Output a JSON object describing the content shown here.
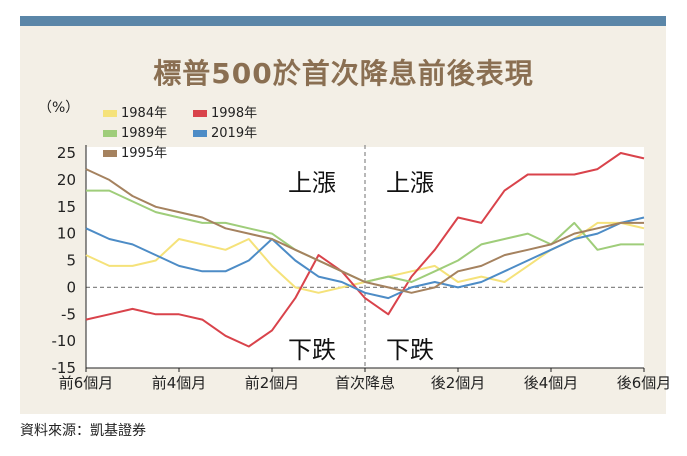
{
  "title": "標普500於首次降息前後表現",
  "source": "資料來源：凱基證券",
  "chart_data": {
    "type": "line",
    "unit_label": "（%）",
    "ylim": [
      -15,
      25
    ],
    "yticks": [
      "25",
      "20",
      "15",
      "10",
      "5",
      "0",
      "-5",
      "-10",
      "-15"
    ],
    "yticks_values": [
      25,
      20,
      15,
      10,
      5,
      0,
      -5,
      -10,
      -15
    ],
    "xlim": [
      -6,
      6
    ],
    "xticks": [
      "前6個月",
      "前4個月",
      "前2個月",
      "首次降息",
      "後2個月",
      "後4個月",
      "後6個月"
    ],
    "xticks_values": [
      -6,
      -4,
      -2,
      0,
      2,
      4,
      6
    ],
    "annotations": {
      "up_left": "上漲",
      "up_right": "上漲",
      "down_left": "下跌",
      "down_right": "下跌"
    },
    "legend_placement": "top-left",
    "series": [
      {
        "name": "1984年",
        "color": "#f5e27a",
        "x": [
          -6,
          -5.5,
          -5,
          -4.5,
          -4,
          -3.5,
          -3,
          -2.5,
          -2,
          -1.5,
          -1,
          -0.5,
          0,
          0.5,
          1,
          1.5,
          2,
          2.5,
          3,
          3.5,
          4,
          4.5,
          5,
          5.5,
          6
        ],
        "y": [
          6,
          4,
          4,
          5,
          9,
          8,
          7,
          9,
          4,
          0,
          -1,
          0,
          1,
          2,
          3,
          4,
          1,
          2,
          1,
          4,
          7,
          9,
          12,
          12,
          11
        ]
      },
      {
        "name": "1998年",
        "color": "#d9434b",
        "x": [
          -6,
          -5.5,
          -5,
          -4.5,
          -4,
          -3.5,
          -3,
          -2.5,
          -2,
          -1.5,
          -1,
          -0.5,
          0,
          0.5,
          1,
          1.5,
          2,
          2.5,
          3,
          3.5,
          4,
          4.5,
          5,
          5.5,
          6
        ],
        "y": [
          -6,
          -5,
          -4,
          -5,
          -5,
          -6,
          -9,
          -11,
          -8,
          -2,
          6,
          3,
          -2,
          -5,
          2,
          7,
          13,
          12,
          18,
          21,
          21,
          21,
          22,
          25,
          24
        ]
      },
      {
        "name": "1989年",
        "color": "#9fcd7a",
        "x": [
          -6,
          -5.5,
          -5,
          -4.5,
          -4,
          -3.5,
          -3,
          -2.5,
          -2,
          -1.5,
          -1,
          -0.5,
          0,
          0.5,
          1,
          1.5,
          2,
          2.5,
          3,
          3.5,
          4,
          4.5,
          5,
          5.5,
          6
        ],
        "y": [
          18,
          18,
          16,
          14,
          13,
          12,
          12,
          11,
          10,
          7,
          5,
          3,
          1,
          2,
          1,
          3,
          5,
          8,
          9,
          10,
          8,
          12,
          7,
          8,
          8
        ]
      },
      {
        "name": "2019年",
        "color": "#4d8cc6",
        "x": [
          -6,
          -5.5,
          -5,
          -4.5,
          -4,
          -3.5,
          -3,
          -2.5,
          -2,
          -1.5,
          -1,
          -0.5,
          0,
          0.5,
          1,
          1.5,
          2,
          2.5,
          3,
          3.5,
          4,
          4.5,
          5,
          5.5,
          6
        ],
        "y": [
          11,
          9,
          8,
          6,
          4,
          3,
          3,
          5,
          9,
          5,
          2,
          1,
          -1,
          -2,
          0,
          1,
          0,
          1,
          3,
          5,
          7,
          9,
          10,
          12,
          13
        ]
      },
      {
        "name": "1995年",
        "color": "#a5825f",
        "x": [
          -6,
          -5.5,
          -5,
          -4.5,
          -4,
          -3.5,
          -3,
          -2.5,
          -2,
          -1.5,
          -1,
          -0.5,
          0,
          0.5,
          1,
          1.5,
          2,
          2.5,
          3,
          3.5,
          4,
          4.5,
          5,
          5.5,
          6
        ],
        "y": [
          22,
          20,
          17,
          15,
          14,
          13,
          11,
          10,
          9,
          7,
          5,
          3,
          1,
          0,
          -1,
          0,
          3,
          4,
          6,
          7,
          8,
          10,
          11,
          12,
          12
        ]
      }
    ]
  }
}
